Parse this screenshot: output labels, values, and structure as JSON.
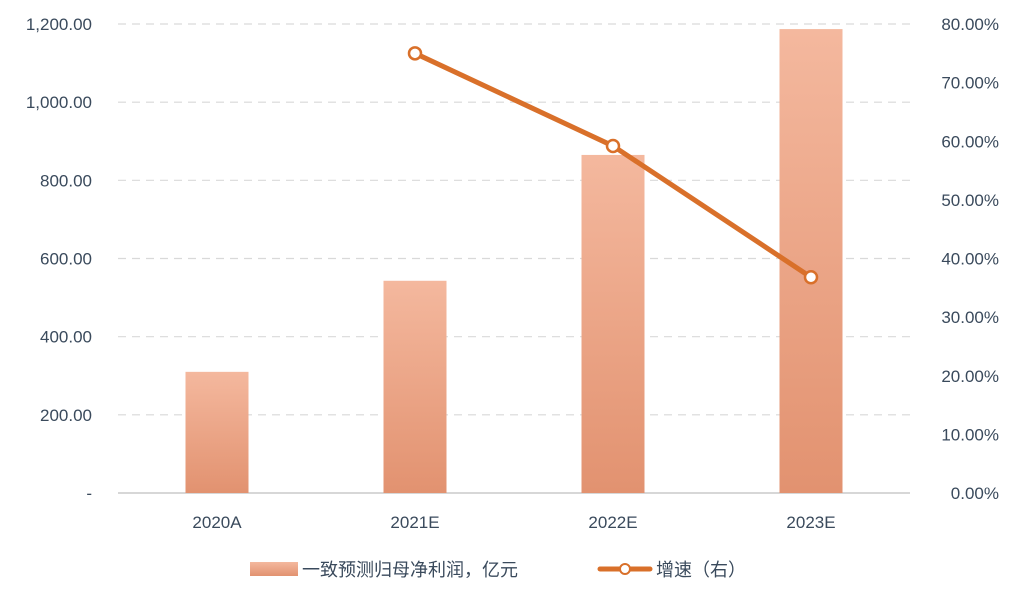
{
  "chart_data": {
    "type": "bar",
    "categories": [
      "2020A",
      "2021E",
      "2022E",
      "2023E"
    ],
    "series": [
      {
        "name": "一致预测归母净利润，亿元",
        "type": "bar",
        "axis": "left",
        "values": [
          310,
          543,
          865,
          1187
        ]
      },
      {
        "name": "增速（右）",
        "type": "line",
        "axis": "right",
        "values": [
          null,
          75.0,
          59.2,
          36.8
        ]
      }
    ],
    "left_axis": {
      "ylim": [
        0,
        1200
      ],
      "ticks": [
        0,
        200,
        400,
        600,
        800,
        1000,
        1200
      ],
      "tick_labels": [
        "-",
        "200.00",
        "400.00",
        "600.00",
        "800.00",
        "1,000.00",
        "1,200.00"
      ]
    },
    "right_axis": {
      "ylim": [
        0,
        80
      ],
      "ticks": [
        0,
        10,
        20,
        30,
        40,
        50,
        60,
        70,
        80
      ],
      "tick_labels": [
        "0.00%",
        "10.00%",
        "20.00%",
        "30.00%",
        "40.00%",
        "50.00%",
        "60.00%",
        "70.00%",
        "80.00%"
      ]
    },
    "grid": true,
    "legend_position": "bottom",
    "colors": {
      "bar_top": "#f4b89e",
      "bar_bottom": "#e29270",
      "line": "#d9702a",
      "grid": "#d9d9d9",
      "axis": "#bfbfbf",
      "text": "#3a4a5c"
    }
  }
}
